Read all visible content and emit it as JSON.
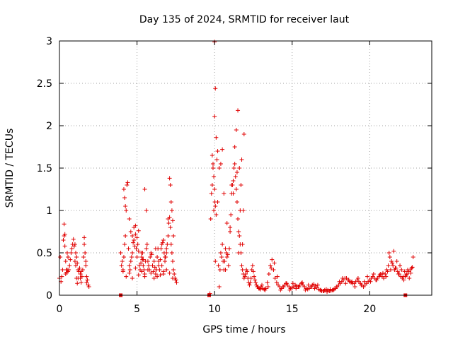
{
  "chart_data": {
    "type": "scatter",
    "title": "Day 135 of 2024, SRMTID for receiver laut",
    "xlabel": "GPS time / hours",
    "ylabel": "SRMTID / TECUs",
    "xlim": [
      0,
      24
    ],
    "ylim": [
      0,
      3
    ],
    "xticks": [
      0,
      5,
      10,
      15,
      20
    ],
    "xtick_labels": [
      "0",
      "5",
      "10",
      "15",
      "20"
    ],
    "yticks": [
      0,
      0.5,
      1,
      1.5,
      2,
      2.5,
      3
    ],
    "ytick_labels": [
      "0",
      "0.5",
      "1",
      "1.5",
      "2",
      "2.5",
      "3"
    ],
    "grid": true,
    "marker": "plus",
    "marker_color": "#e00000",
    "series": [
      {
        "name": "SRMTID",
        "x": [
          0.0,
          0.05,
          0.1,
          0.15,
          0.2,
          0.25,
          0.3,
          0.35,
          0.4,
          0.45,
          0.5,
          0.55,
          0.6,
          0.65,
          0.7,
          0.75,
          0.8,
          0.85,
          0.9,
          0.95,
          1.0,
          1.05,
          1.1,
          1.15,
          1.2,
          1.25,
          1.3,
          1.35,
          1.4,
          1.45,
          1.5,
          1.55,
          1.6,
          1.65,
          1.7,
          1.75,
          1.8,
          1.85,
          1.9,
          0.3,
          0.35,
          0.4,
          0.45,
          0.5,
          0.55,
          1.0,
          1.05,
          1.1,
          1.15,
          1.2,
          1.35,
          1.4,
          1.6,
          1.7,
          1.75,
          3.95,
          4.0,
          4.05,
          4.1,
          4.15,
          4.2,
          4.25,
          4.3,
          4.35,
          4.4,
          4.45,
          4.5,
          4.55,
          4.6,
          4.65,
          4.7,
          4.75,
          4.8,
          4.85,
          4.9,
          4.95,
          5.0,
          5.05,
          5.1,
          5.15,
          5.2,
          5.25,
          5.3,
          5.35,
          5.4,
          5.45,
          5.5,
          5.55,
          5.6,
          5.65,
          5.7,
          5.75,
          5.8,
          5.85,
          5.9,
          5.95,
          6.0,
          6.05,
          6.1,
          6.15,
          6.2,
          6.25,
          6.3,
          6.35,
          6.4,
          6.45,
          6.5,
          6.55,
          6.6,
          6.65,
          6.7,
          6.75,
          6.8,
          6.85,
          6.9,
          6.95,
          7.0,
          7.05,
          7.1,
          7.15,
          7.2,
          7.25,
          7.3,
          7.35,
          7.4,
          7.45,
          7.5,
          7.55,
          4.15,
          4.2,
          4.25,
          4.5,
          4.6,
          4.7,
          4.8,
          4.9,
          5.0,
          5.1,
          5.3,
          5.35,
          5.4,
          5.5,
          5.6,
          6.2,
          6.4,
          6.6,
          6.7,
          6.8,
          6.9,
          7.0,
          7.1,
          7.15,
          7.2,
          7.25,
          7.3,
          7.35,
          4.1,
          4.3,
          4.5,
          4.7,
          4.9,
          5.1,
          5.3,
          5.5,
          5.7,
          5.9,
          6.1,
          6.3,
          6.5,
          6.7,
          6.9,
          7.1,
          7.3,
          7.5,
          9.7,
          9.75,
          9.8,
          9.85,
          9.9,
          9.95,
          10.0,
          10.05,
          10.1,
          10.15,
          10.2,
          10.25,
          10.3,
          10.35,
          10.4,
          10.45,
          10.5,
          10.55,
          10.6,
          10.65,
          10.7,
          10.75,
          10.8,
          10.85,
          10.9,
          10.95,
          11.0,
          11.05,
          11.1,
          11.15,
          11.2,
          11.25,
          11.3,
          11.35,
          11.4,
          11.45,
          11.5,
          11.55,
          11.6,
          11.65,
          11.7,
          11.75,
          11.8,
          11.85,
          11.9,
          11.95,
          12.0,
          12.05,
          12.1,
          12.15,
          12.2,
          12.25,
          12.3,
          12.35,
          12.4,
          12.45,
          12.5,
          12.55,
          12.6,
          12.65,
          12.7,
          12.75,
          12.8,
          12.85,
          12.9,
          12.95,
          9.85,
          9.9,
          9.95,
          10.0,
          10.05,
          10.1,
          10.2,
          10.4,
          10.5,
          10.6,
          10.8,
          11.0,
          11.2,
          11.4,
          11.5,
          11.6,
          11.7,
          11.75,
          11.8,
          11.85,
          11.9,
          10.0,
          10.02,
          10.05,
          10.3,
          10.7,
          11.1,
          11.3,
          11.45,
          11.55,
          11.65,
          13.0,
          13.1,
          13.2,
          13.3,
          13.4,
          13.5,
          13.6,
          13.7,
          13.8,
          13.9,
          14.0,
          14.1,
          14.2,
          14.3,
          14.4,
          14.5,
          14.6,
          14.7,
          14.8,
          14.9,
          15.0,
          15.1,
          15.2,
          15.3,
          15.4,
          15.5,
          15.6,
          15.7,
          15.8,
          15.9,
          16.0,
          16.1,
          16.2,
          16.3,
          16.4,
          16.5,
          16.6,
          16.7,
          16.8,
          16.9,
          17.0,
          17.1,
          17.2,
          17.3,
          17.4,
          17.5,
          17.6,
          17.7,
          17.8,
          17.9,
          18.0,
          18.1,
          18.2,
          18.3,
          18.4,
          18.5,
          18.6,
          18.7,
          18.8,
          18.9,
          19.0,
          19.1,
          19.2,
          19.3,
          19.4,
          19.5,
          19.6,
          19.7,
          19.8,
          19.9,
          20.0,
          20.1,
          20.2,
          20.3,
          20.4,
          20.5,
          20.6,
          20.7,
          20.8,
          20.9,
          21.0,
          21.1,
          21.2,
          21.3,
          21.4,
          21.5,
          21.6,
          21.7,
          21.8,
          21.9,
          22.0,
          22.1,
          22.2,
          22.3,
          22.4,
          22.5,
          22.6,
          22.7,
          22.8,
          13.05,
          13.25,
          13.45,
          13.65,
          13.85,
          14.05,
          14.25,
          14.45,
          14.65,
          14.85,
          15.05,
          15.25,
          15.45,
          15.65,
          15.85,
          16.05,
          16.25,
          16.45,
          16.65,
          16.85,
          17.05,
          17.25,
          17.45,
          17.65,
          17.85,
          18.05,
          18.25,
          18.45,
          18.65,
          18.85,
          19.05,
          19.25,
          19.45,
          19.65,
          19.85,
          20.05,
          20.25,
          20.45,
          20.65,
          20.85,
          21.05,
          21.15,
          21.25,
          21.35,
          21.45,
          21.55,
          21.65,
          21.75,
          21.85,
          21.95,
          22.05,
          22.15,
          22.25,
          22.35,
          22.45,
          22.55,
          22.65,
          22.75
        ],
        "y": [
          0.2,
          0.45,
          0.16,
          0.22,
          0.3,
          0.65,
          0.7,
          0.72,
          0.25,
          0.27,
          0.3,
          0.28,
          0.3,
          0.35,
          0.42,
          0.5,
          0.55,
          0.6,
          0.66,
          0.58,
          0.4,
          0.35,
          0.2,
          0.14,
          0.2,
          0.28,
          0.32,
          0.25,
          0.15,
          0.22,
          0.3,
          0.45,
          0.68,
          0.5,
          0.35,
          0.22,
          0.18,
          0.12,
          0.1,
          0.84,
          0.58,
          0.4,
          0.3,
          0.5,
          0.45,
          0.6,
          0.5,
          0.45,
          0.38,
          0.3,
          0.2,
          0.28,
          0.6,
          0.4,
          0.15,
          0.5,
          0.35,
          0.4,
          0.3,
          0.45,
          0.6,
          0.7,
          1.0,
          1.3,
          1.33,
          0.55,
          0.35,
          0.3,
          0.4,
          0.45,
          0.5,
          0.62,
          0.65,
          0.58,
          0.82,
          0.55,
          0.45,
          0.6,
          0.52,
          0.35,
          0.3,
          0.38,
          0.45,
          0.5,
          0.42,
          0.3,
          0.25,
          0.4,
          0.55,
          0.6,
          0.4,
          0.35,
          0.3,
          0.45,
          0.5,
          0.48,
          0.35,
          0.28,
          0.4,
          0.33,
          0.25,
          0.3,
          0.45,
          0.55,
          0.35,
          0.3,
          0.42,
          0.55,
          0.6,
          0.62,
          0.65,
          0.5,
          0.4,
          0.45,
          0.55,
          0.6,
          0.7,
          0.85,
          0.92,
          0.8,
          0.6,
          0.5,
          0.4,
          0.3,
          0.25,
          0.2,
          0.18,
          0.15,
          1.25,
          1.15,
          1.05,
          0.9,
          0.75,
          0.7,
          0.8,
          0.72,
          0.68,
          0.76,
          0.5,
          0.42,
          0.35,
          1.25,
          1.0,
          0.55,
          0.4,
          0.35,
          0.25,
          0.45,
          0.5,
          0.9,
          1.38,
          1.3,
          1.1,
          1.0,
          0.88,
          0.7,
          0.28,
          0.22,
          0.26,
          0.2,
          0.32,
          0.24,
          0.28,
          0.22,
          0.3,
          0.26,
          0.2,
          0.22,
          0.24,
          0.28,
          0.3,
          0.26,
          0.2,
          0.18,
          0.02,
          0.9,
          1.2,
          1.3,
          1.5,
          1.4,
          1.25,
          1.05,
          0.95,
          1.6,
          1.1,
          0.35,
          0.1,
          0.3,
          0.5,
          0.45,
          0.6,
          0.4,
          0.3,
          0.4,
          0.55,
          0.5,
          0.45,
          0.48,
          0.35,
          0.55,
          0.8,
          0.95,
          1.2,
          1.3,
          1.35,
          1.5,
          1.55,
          1.4,
          1.25,
          1.1,
          0.9,
          0.75,
          0.7,
          0.6,
          0.5,
          0.35,
          0.3,
          0.25,
          0.2,
          0.22,
          0.25,
          0.3,
          0.28,
          0.2,
          0.15,
          0.12,
          0.15,
          0.2,
          0.3,
          0.35,
          0.28,
          0.22,
          0.18,
          0.15,
          0.12,
          0.1,
          0.1,
          0.08,
          0.08,
          0.07,
          1.65,
          1.55,
          1.0,
          2.11,
          2.44,
          1.86,
          1.7,
          1.55,
          1.72,
          1.2,
          0.85,
          0.75,
          1.2,
          1.95,
          2.18,
          1.5,
          1.3,
          1.6,
          0.6,
          1.0,
          1.9,
          2.99,
          1.1,
          0.4,
          1.5,
          0.3,
          1.3,
          1.75,
          1.45,
          0.5,
          1.0,
          0.1,
          0.08,
          0.07,
          0.08,
          0.15,
          0.25,
          0.35,
          0.42,
          0.3,
          0.2,
          0.15,
          0.12,
          0.1,
          0.08,
          0.1,
          0.12,
          0.14,
          0.12,
          0.1,
          0.08,
          0.09,
          0.1,
          0.12,
          0.11,
          0.1,
          0.12,
          0.14,
          0.12,
          0.1,
          0.08,
          0.07,
          0.08,
          0.1,
          0.12,
          0.13,
          0.11,
          0.09,
          0.07,
          0.06,
          0.05,
          0.05,
          0.06,
          0.07,
          0.06,
          0.05,
          0.05,
          0.06,
          0.07,
          0.08,
          0.1,
          0.12,
          0.14,
          0.16,
          0.18,
          0.2,
          0.2,
          0.18,
          0.16,
          0.15,
          0.14,
          0.14,
          0.16,
          0.18,
          0.16,
          0.14,
          0.12,
          0.1,
          0.12,
          0.14,
          0.16,
          0.18,
          0.2,
          0.22,
          0.2,
          0.18,
          0.2,
          0.22,
          0.25,
          0.22,
          0.2,
          0.25,
          0.3,
          0.35,
          0.45,
          0.4,
          0.35,
          0.3,
          0.32,
          0.28,
          0.25,
          0.22,
          0.2,
          0.18,
          0.22,
          0.25,
          0.28,
          0.3,
          0.32,
          0.45,
          0.12,
          0.06,
          0.1,
          0.32,
          0.38,
          0.22,
          0.06,
          0.1,
          0.14,
          0.06,
          0.14,
          0.08,
          0.1,
          0.15,
          0.06,
          0.12,
          0.1,
          0.08,
          0.12,
          0.06,
          0.05,
          0.04,
          0.07,
          0.06,
          0.1,
          0.16,
          0.2,
          0.14,
          0.18,
          0.16,
          0.1,
          0.2,
          0.12,
          0.16,
          0.22,
          0.16,
          0.25,
          0.18,
          0.24,
          0.26,
          0.22,
          0.28,
          0.5,
          0.3,
          0.38,
          0.52,
          0.32,
          0.4,
          0.25,
          0.35,
          0.3,
          0.22,
          0.28,
          0.24,
          0.3,
          0.2,
          0.26,
          0.33
        ]
      },
      {
        "name": "gap-markers",
        "marker": "square",
        "x": [
          3.95,
          9.65,
          22.3
        ],
        "y": [
          0,
          0,
          0
        ]
      }
    ]
  }
}
